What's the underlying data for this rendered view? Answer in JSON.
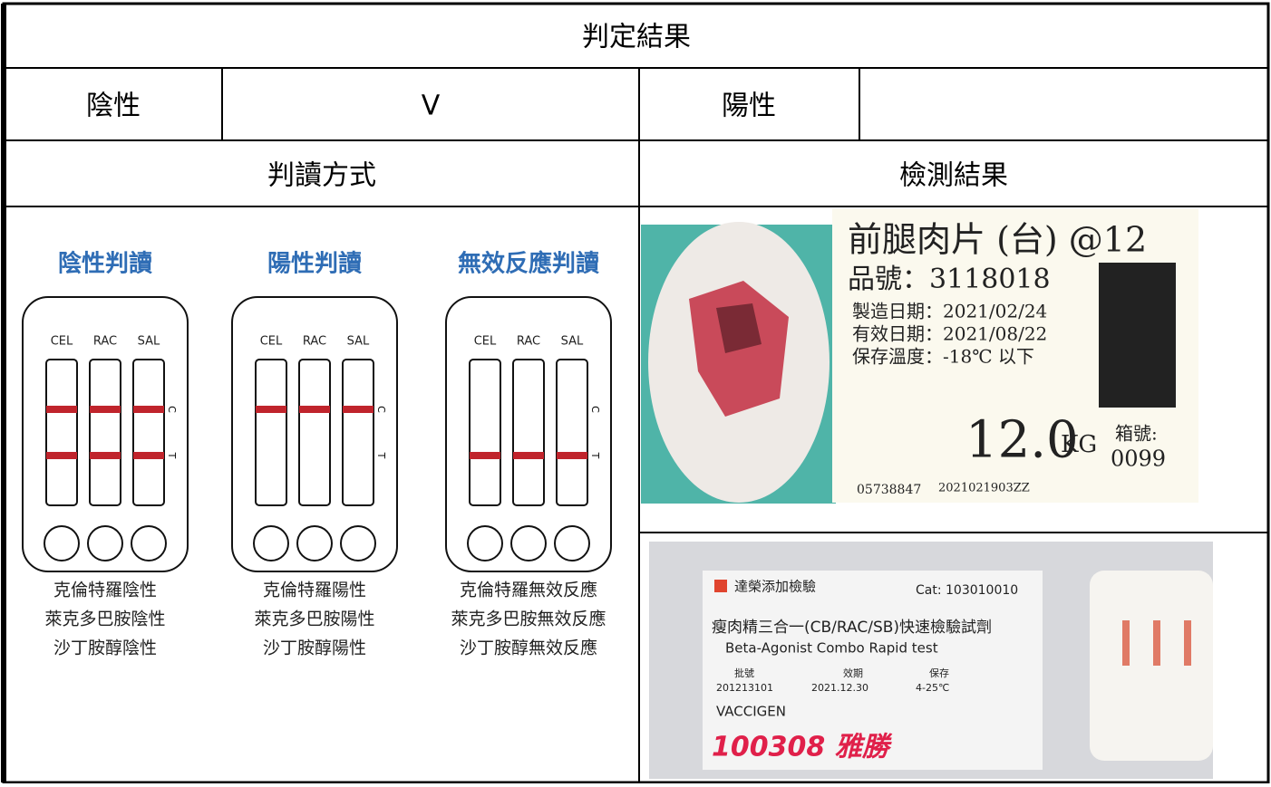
{
  "header": {
    "title": "判定結果"
  },
  "result": {
    "negative_label": "陰性",
    "negative_mark": "V",
    "positive_label": "陽性"
  },
  "sections": {
    "method": "判讀方式",
    "result": "檢測結果"
  },
  "panels": [
    {
      "title": "陰性判讀",
      "strips": [
        "CEL",
        "RAC",
        "SAL"
      ],
      "control": "C",
      "test": "T",
      "show_control": true,
      "show_test": true,
      "captions": [
        "克倫特羅陰性",
        "萊克多巴胺陰性",
        "沙丁胺醇陰性"
      ]
    },
    {
      "title": "陽性判讀",
      "strips": [
        "CEL",
        "RAC",
        "SAL"
      ],
      "control": "C",
      "test": "T",
      "show_control": true,
      "show_test": false,
      "captions": [
        "克倫特羅陽性",
        "萊克多巴胺陽性",
        "沙丁胺醇陽性"
      ]
    },
    {
      "title": "無效反應判讀",
      "strips": [
        "CEL",
        "RAC",
        "SAL"
      ],
      "control": "C",
      "test": "T",
      "show_control": false,
      "show_test": true,
      "captions": [
        "克倫特羅無效反應",
        "萊克多巴胺無效反應",
        "沙丁胺醇無效反應"
      ]
    }
  ],
  "photo_label": {
    "product": "前腿肉片 (台) @12",
    "item_no": "品號：3118018",
    "made": "製造日期：2021/02/24",
    "expiry": "有效日期：2021/08/22",
    "storage": "保存溫度：-18℃ 以下",
    "weight": "12.0",
    "unit": "KG",
    "box": "箱號:",
    "box_no": "0099",
    "barcode": "05738847",
    "code": "2021021903ZZ"
  },
  "photo_kit": {
    "brand": "達榮添加檢驗",
    "cat": "Cat: 103010010",
    "name": "瘦肉精三合一(CB/RAC/SB)快速檢驗試劑",
    "name_en": "Beta-Agonist Combo Rapid test",
    "lot_label": "批號",
    "lot": "201213101",
    "exp_label": "效期",
    "exp": "2021.12.30",
    "store_label": "保存",
    "store": "4-25℃",
    "maker": "VACCIGEN",
    "handwriting": "100308 雅勝"
  }
}
